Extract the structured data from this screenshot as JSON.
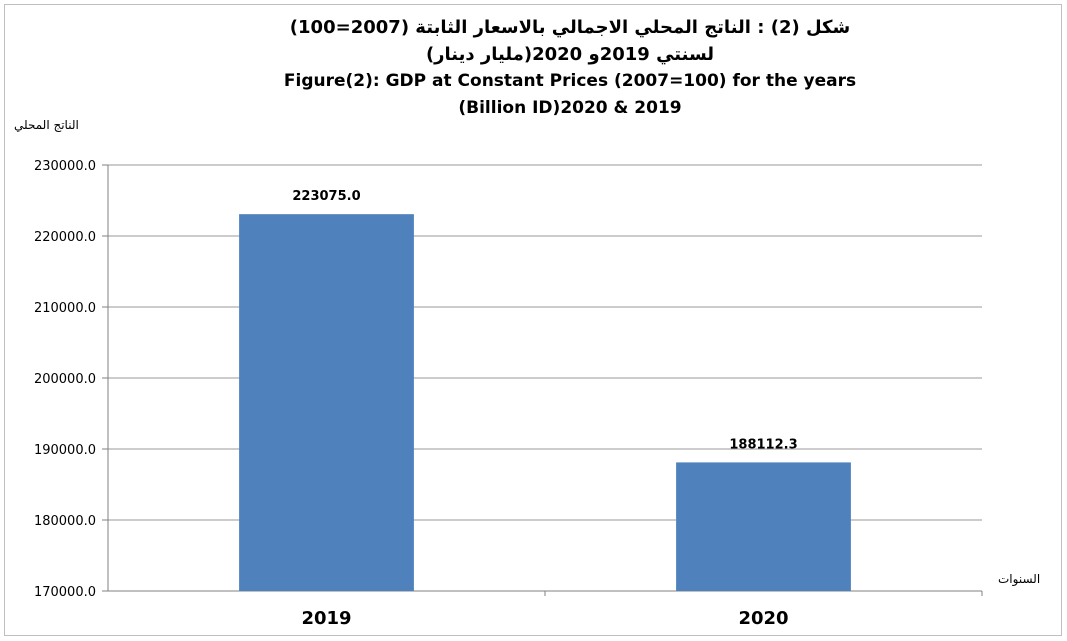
{
  "chart_data": {
    "type": "bar",
    "title_ar": "شكل (2) : الناتج المحلي الاجمالي بالاسعار الثابتة (2007=100) لسنتي 2019و 2020(مليار دينار)",
    "title_en_line1": "Figure(2): GDP at Constant Prices (2007=100) for the years",
    "title_en_line2": "(Billion ID)2020 & 2019",
    "ylabel": "الناتج المحلي",
    "xlabel": "السنوات",
    "categories": [
      "2019",
      "2020"
    ],
    "values": [
      223075.0,
      188112.3
    ],
    "value_labels": [
      "223075.0",
      "188112.3"
    ],
    "ylim": [
      170000,
      230000
    ],
    "y_ticks": [
      170000,
      180000,
      190000,
      200000,
      210000,
      220000,
      230000
    ],
    "y_tick_labels": [
      "170000.0",
      "180000.0",
      "190000.0",
      "200000.0",
      "210000.0",
      "220000.0",
      "230000.0"
    ],
    "grid": true,
    "legend": "none",
    "bar_color": "#4f81bd",
    "grid_color": "#999999"
  }
}
